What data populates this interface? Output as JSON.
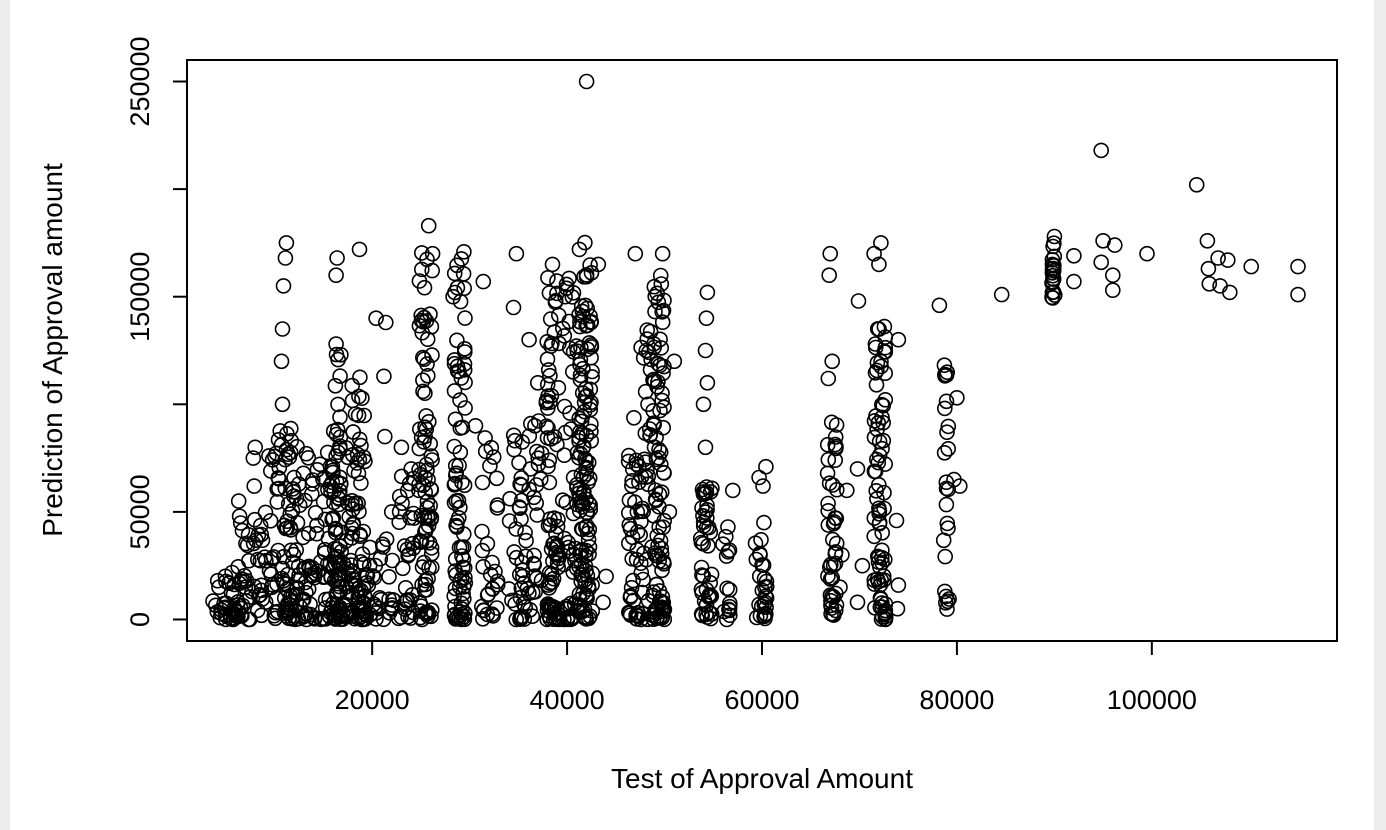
{
  "chart_data": {
    "type": "scatter",
    "title": "",
    "xlabel": "Test of Approval Amount",
    "ylabel": "Prediction of Approval amount",
    "xlim": [
      1000,
      119000
    ],
    "ylim": [
      -10000,
      260000
    ],
    "x_ticks": [
      20000,
      40000,
      60000,
      80000,
      100000
    ],
    "y_ticks": [
      0,
      50000,
      100000,
      150000,
      200000,
      250000
    ],
    "x_tick_labels": [
      "20000",
      "40000",
      "60000",
      "80000",
      "100000"
    ],
    "y_tick_labels": [
      "0",
      "50000",
      "",
      "150000",
      "",
      "250000"
    ],
    "grid": false,
    "legend": "none",
    "marker": "open-circle",
    "colors": {
      "point": "#000000",
      "background": "#ffffff",
      "frame": "#000000"
    },
    "points": [
      [
        42000,
        250000
      ],
      [
        94800,
        218000
      ],
      [
        104600,
        202000
      ],
      [
        25800,
        183000
      ],
      [
        90000,
        178000
      ],
      [
        95000,
        176000
      ],
      [
        96200,
        174000
      ],
      [
        105700,
        176000
      ],
      [
        89800,
        165000
      ],
      [
        92000,
        169000
      ],
      [
        94800,
        166000
      ],
      [
        96000,
        160000
      ],
      [
        99500,
        170000
      ],
      [
        105800,
        163000
      ],
      [
        106800,
        168000
      ],
      [
        107800,
        167000
      ],
      [
        110200,
        164000
      ],
      [
        115000,
        164000
      ],
      [
        84600,
        151000
      ],
      [
        89800,
        152000
      ],
      [
        92000,
        157000
      ],
      [
        96000,
        153000
      ],
      [
        105900,
        156000
      ],
      [
        107000,
        155000
      ],
      [
        108000,
        152000
      ],
      [
        115000,
        151000
      ],
      [
        78200,
        146000
      ],
      [
        69900,
        148000
      ],
      [
        80000,
        103000
      ],
      [
        80300,
        62000
      ],
      [
        79700,
        65000
      ],
      [
        74000,
        130000
      ],
      [
        73800,
        46000
      ],
      [
        74000,
        16000
      ],
      [
        73900,
        5000
      ],
      [
        69800,
        70000
      ],
      [
        70300,
        25000
      ],
      [
        69800,
        8000
      ],
      [
        60400,
        71000
      ],
      [
        60100,
        62000
      ],
      [
        59700,
        66000
      ],
      [
        57000,
        60000
      ],
      [
        56500,
        43000
      ],
      [
        56000,
        35000
      ],
      [
        56700,
        2000
      ],
      [
        44000,
        20000
      ],
      [
        43700,
        8000
      ],
      [
        50500,
        50000
      ],
      [
        47000,
        170000
      ],
      [
        49800,
        170000
      ],
      [
        48300,
        100000
      ],
      [
        47200,
        50000
      ],
      [
        66800,
        112000
      ],
      [
        66900,
        160000
      ],
      [
        67000,
        170000
      ],
      [
        68000,
        15000
      ],
      [
        68200,
        30000
      ],
      [
        21400,
        138000
      ],
      [
        21200,
        113000
      ],
      [
        21300,
        85000
      ],
      [
        20400,
        140000
      ],
      [
        18700,
        172000
      ],
      [
        16400,
        168000
      ],
      [
        16300,
        160000
      ],
      [
        34800,
        170000
      ],
      [
        34500,
        145000
      ],
      [
        36100,
        130000
      ],
      [
        31400,
        157000
      ],
      [
        30600,
        90000
      ],
      [
        23000,
        80000
      ],
      [
        24000,
        70000
      ],
      [
        24800,
        60000
      ],
      [
        22000,
        50000
      ],
      [
        26200,
        170000
      ],
      [
        28300,
        150000
      ],
      [
        37000,
        110000
      ],
      [
        36700,
        90000
      ],
      [
        38500,
        165000
      ],
      [
        43200,
        165000
      ],
      [
        39800,
        150000
      ],
      [
        51000,
        120000
      ],
      [
        54400,
        152000
      ],
      [
        54300,
        140000
      ],
      [
        54200,
        125000
      ],
      [
        54400,
        110000
      ],
      [
        54000,
        100000
      ],
      [
        54200,
        80000
      ],
      [
        60200,
        45000
      ],
      [
        59800,
        30000
      ],
      [
        60300,
        15000
      ],
      [
        67200,
        120000
      ],
      [
        68700,
        60000
      ],
      [
        71500,
        170000
      ],
      [
        72200,
        175000
      ],
      [
        72000,
        165000
      ],
      [
        6400,
        48000
      ],
      [
        6300,
        55000
      ],
      [
        7800,
        75000
      ],
      [
        7900,
        62000
      ],
      [
        8000,
        80000
      ],
      [
        9600,
        69000
      ],
      [
        9400,
        76000
      ],
      [
        11200,
        175000
      ],
      [
        11100,
        168000
      ],
      [
        10900,
        155000
      ],
      [
        10800,
        135000
      ],
      [
        10700,
        120000
      ],
      [
        10800,
        100000
      ]
    ],
    "columns": [
      {
        "x": 5200,
        "y_min": 0,
        "y_max": 22000,
        "n": 40,
        "spread": 1600
      },
      {
        "x": 8000,
        "y_min": 0,
        "y_max": 50000,
        "n": 45,
        "spread": 1800
      },
      {
        "x": 11000,
        "y_min": 0,
        "y_max": 90000,
        "n": 55,
        "spread": 1500
      },
      {
        "x": 14500,
        "y_min": 0,
        "y_max": 80000,
        "n": 150,
        "spread": 3600
      },
      {
        "x": 16300,
        "y_min": 0,
        "y_max": 130000,
        "n": 50,
        "spread": 500
      },
      {
        "x": 18600,
        "y_min": 0,
        "y_max": 125000,
        "n": 60,
        "spread": 700
      },
      {
        "x": 20500,
        "y_min": 0,
        "y_max": 40000,
        "n": 40,
        "spread": 1800
      },
      {
        "x": 23500,
        "y_min": 0,
        "y_max": 70000,
        "n": 30,
        "spread": 800
      },
      {
        "x": 25500,
        "y_min": 0,
        "y_max": 178000,
        "n": 90,
        "spread": 700
      },
      {
        "x": 29000,
        "y_min": 0,
        "y_max": 176000,
        "n": 85,
        "spread": 600
      },
      {
        "x": 32000,
        "y_min": 0,
        "y_max": 85000,
        "n": 30,
        "spread": 900
      },
      {
        "x": 34800,
        "y_min": 0,
        "y_max": 100000,
        "n": 35,
        "spread": 900
      },
      {
        "x": 36500,
        "y_min": 0,
        "y_max": 108000,
        "n": 30,
        "spread": 900
      },
      {
        "x": 38500,
        "y_min": 0,
        "y_max": 160000,
        "n": 80,
        "spread": 700
      },
      {
        "x": 40300,
        "y_min": 0,
        "y_max": 168000,
        "n": 50,
        "spread": 800
      },
      {
        "x": 41900,
        "y_min": 0,
        "y_max": 176000,
        "n": 130,
        "spread": 700
      },
      {
        "x": 46800,
        "y_min": 0,
        "y_max": 95000,
        "n": 35,
        "spread": 600
      },
      {
        "x": 48200,
        "y_min": 0,
        "y_max": 135000,
        "n": 40,
        "spread": 700
      },
      {
        "x": 49400,
        "y_min": 0,
        "y_max": 160000,
        "n": 90,
        "spread": 600
      },
      {
        "x": 54300,
        "y_min": 0,
        "y_max": 62000,
        "n": 45,
        "spread": 600
      },
      {
        "x": 56300,
        "y_min": 0,
        "y_max": 42000,
        "n": 12,
        "spread": 400
      },
      {
        "x": 59900,
        "y_min": 0,
        "y_max": 45000,
        "n": 25,
        "spread": 600
      },
      {
        "x": 67200,
        "y_min": 0,
        "y_max": 95000,
        "n": 45,
        "spread": 500
      },
      {
        "x": 72100,
        "y_min": 0,
        "y_max": 145000,
        "n": 80,
        "spread": 600
      },
      {
        "x": 78900,
        "y_min": 4000,
        "y_max": 120000,
        "n": 25,
        "spread": 300
      },
      {
        "x": 89900,
        "y_min": 149000,
        "y_max": 178000,
        "n": 20,
        "spread": 150
      }
    ]
  }
}
